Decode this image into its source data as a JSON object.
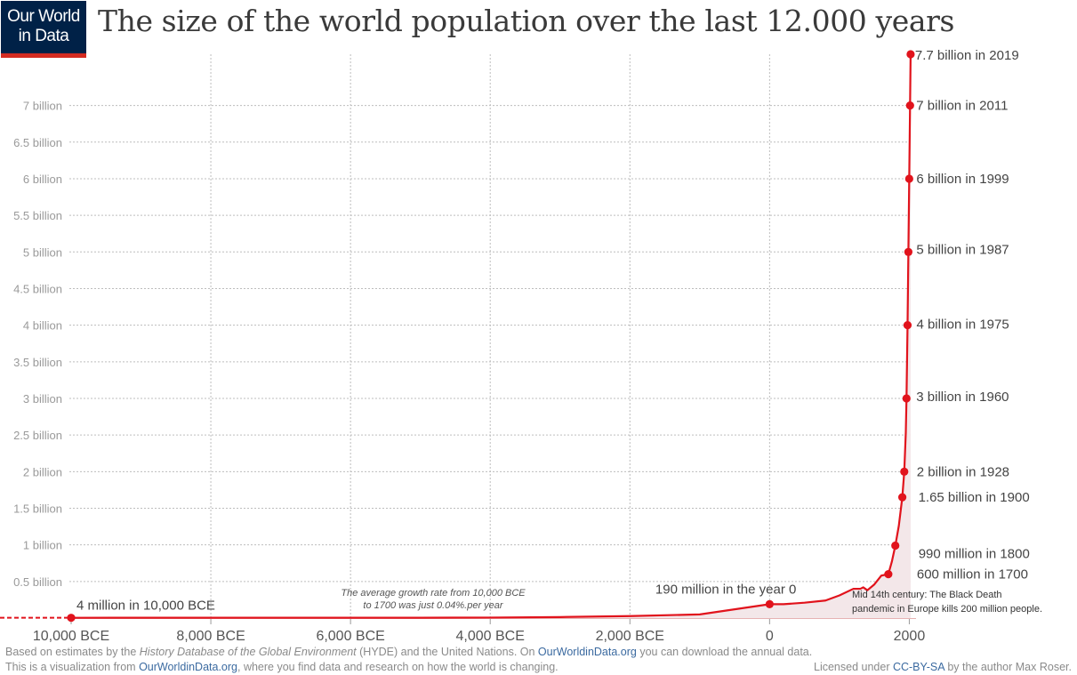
{
  "logo": {
    "line1": "Our World",
    "line2": "in Data"
  },
  "title": "The size of the world population over the last 12.000 years",
  "chart_data": {
    "type": "line",
    "title": "The size of the world population over the last 12.000 years",
    "xlabel": "",
    "ylabel": "",
    "xlim": [
      -10000,
      2020
    ],
    "ylim": [
      0,
      7.7
    ],
    "grid": true,
    "y_ticks": [
      {
        "value": 0.5,
        "label": "0.5 billion"
      },
      {
        "value": 1,
        "label": "1 billion"
      },
      {
        "value": 1.5,
        "label": "1.5 billion"
      },
      {
        "value": 2,
        "label": "2 billion"
      },
      {
        "value": 2.5,
        "label": "2.5 billion"
      },
      {
        "value": 3,
        "label": "3 billion"
      },
      {
        "value": 3.5,
        "label": "3.5  billion"
      },
      {
        "value": 4,
        "label": "4 billion"
      },
      {
        "value": 4.5,
        "label": "4.5 billion"
      },
      {
        "value": 5,
        "label": "5 billion"
      },
      {
        "value": 5.5,
        "label": "5.5 billion"
      },
      {
        "value": 6,
        "label": "6 billion"
      },
      {
        "value": 6.5,
        "label": "6.5 billion"
      },
      {
        "value": 7,
        "label": "7 billion"
      }
    ],
    "x_ticks": [
      {
        "value": -10000,
        "label": "10,000 BCE"
      },
      {
        "value": -8000,
        "label": "8,000 BCE"
      },
      {
        "value": -6000,
        "label": "6,000 BCE"
      },
      {
        "value": -4000,
        "label": "4,000 BCE"
      },
      {
        "value": -2000,
        "label": "2,000 BCE"
      },
      {
        "value": 0,
        "label": "0"
      },
      {
        "value": 2000,
        "label": "2000"
      }
    ],
    "series": [
      {
        "color": "#e1131c",
        "x": [
          -10000,
          -8000,
          -6000,
          -5000,
          -4000,
          -3000,
          -2000,
          -1000,
          0,
          200,
          500,
          800,
          1000,
          1200,
          1300,
          1340,
          1400,
          1500,
          1600,
          1700,
          1750,
          1800,
          1850,
          1900,
          1928,
          1950,
          1960,
          1975,
          1987,
          1999,
          2011,
          2019
        ],
        "y": [
          0.004,
          0.005,
          0.005,
          0.005,
          0.007,
          0.014,
          0.027,
          0.05,
          0.19,
          0.19,
          0.21,
          0.24,
          0.31,
          0.4,
          0.4,
          0.42,
          0.38,
          0.46,
          0.58,
          0.6,
          0.77,
          0.99,
          1.26,
          1.65,
          2.0,
          2.53,
          3.0,
          4.0,
          5.0,
          6.0,
          7.0,
          7.7
        ]
      }
    ],
    "points": [
      {
        "x": -10000,
        "y": 0.004,
        "label": "4 million in 10,000 BCE"
      },
      {
        "x": 0,
        "y": 0.19,
        "label": "190 million in the year 0"
      },
      {
        "x": 1700,
        "y": 0.6,
        "label": "600 million in 1700"
      },
      {
        "x": 1800,
        "y": 0.99,
        "label": "990 million in 1800"
      },
      {
        "x": 1900,
        "y": 1.65,
        "label": "1.65 billion in 1900"
      },
      {
        "x": 1928,
        "y": 2.0,
        "label": "2 billion in 1928"
      },
      {
        "x": 1960,
        "y": 3.0,
        "label": "3 billion in 1960"
      },
      {
        "x": 1975,
        "y": 4.0,
        "label": "4 billion in 1975"
      },
      {
        "x": 1987,
        "y": 5.0,
        "label": "5 billion in 1987"
      },
      {
        "x": 1999,
        "y": 6.0,
        "label": "6 billion in 1999"
      },
      {
        "x": 2011,
        "y": 7.0,
        "label": "7 billion in 2011"
      },
      {
        "x": 2019,
        "y": 7.7,
        "label": "7.7 billion in 2019"
      }
    ],
    "annotations": [
      {
        "text_lines": [
          "The average growth rate from 10,000 BCE",
          "to 1700 was just  0.04%.per year"
        ],
        "style": "italic"
      },
      {
        "text_lines": [
          "Mid 14th century: The Black Death",
          "pandemic in Europe kills 200 million people."
        ],
        "style": "normal"
      }
    ]
  },
  "footer": {
    "line1_a": "Based on estimates by the ",
    "line1_b": "History Database of the Global Environment",
    "line1_c": " (HYDE) and the United Nations. On ",
    "line1_d": "OurWorldinData.org",
    "line1_e": " you can download the annual data.",
    "line2_a": "This is a visualization from ",
    "line2_b": "OurWorldinData.org",
    "line2_c": ", where you find data and research on how the world is changing.",
    "line3_a": "Licensed under ",
    "line3_b": "CC-BY-SA",
    "line3_c": " by the author Max Roser."
  }
}
